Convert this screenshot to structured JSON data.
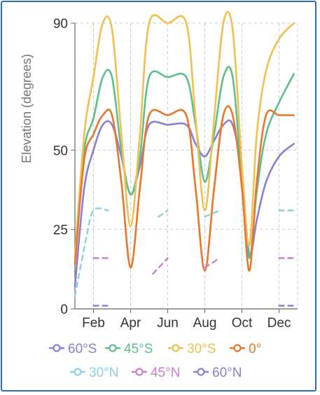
{
  "chart_data": {
    "type": "line",
    "ylabel": "Elevation (degrees)",
    "xlabel": "",
    "ylim": [
      0,
      90
    ],
    "xlim": [
      0,
      12
    ],
    "y_ticks": [
      0,
      25,
      50,
      90
    ],
    "x_ticks": [
      {
        "label": "Feb",
        "x": 1
      },
      {
        "label": "Apr",
        "x": 3
      },
      {
        "label": "Jun",
        "x": 5
      },
      {
        "label": "Aug",
        "x": 7
      },
      {
        "label": "Oct",
        "x": 9
      },
      {
        "label": "Dec",
        "x": 11
      }
    ],
    "grid": true,
    "legend_position": "bottom",
    "series": [
      {
        "name": "60°S",
        "color": "#8a7fd0",
        "dash": false,
        "points": [
          [
            0,
            7
          ],
          [
            0.5,
            38
          ],
          [
            1,
            50
          ],
          [
            1.5,
            58
          ],
          [
            2,
            58
          ],
          [
            2.5,
            48
          ],
          [
            3,
            36
          ],
          [
            3.5,
            45
          ],
          [
            4,
            58
          ],
          [
            5,
            58
          ],
          [
            6,
            58
          ],
          [
            6.5,
            52
          ],
          [
            7,
            48
          ],
          [
            7.5,
            53
          ],
          [
            8,
            58
          ],
          [
            8.5,
            58
          ],
          [
            9,
            42
          ],
          [
            9.4,
            17
          ],
          [
            9.8,
            28
          ],
          [
            10.3,
            40
          ],
          [
            11,
            48
          ],
          [
            11.8,
            52
          ]
        ]
      },
      {
        "name": "45°S",
        "color": "#5fbf8c",
        "dash": false,
        "points": [
          [
            0,
            16
          ],
          [
            0.5,
            50
          ],
          [
            1,
            60
          ],
          [
            1.5,
            73
          ],
          [
            2,
            73
          ],
          [
            2.5,
            50
          ],
          [
            3,
            36
          ],
          [
            3.5,
            48
          ],
          [
            4,
            73
          ],
          [
            5,
            73
          ],
          [
            6,
            73
          ],
          [
            6.5,
            58
          ],
          [
            7,
            40
          ],
          [
            7.5,
            55
          ],
          [
            8,
            73
          ],
          [
            8.5,
            73
          ],
          [
            9,
            40
          ],
          [
            9.4,
            16
          ],
          [
            9.8,
            37
          ],
          [
            10.3,
            55
          ],
          [
            11,
            65
          ],
          [
            11.8,
            74
          ]
        ]
      },
      {
        "name": "30°S",
        "color": "#f0c050",
        "dash": false,
        "points": [
          [
            0,
            16
          ],
          [
            0.5,
            55
          ],
          [
            1,
            73
          ],
          [
            1.5,
            90
          ],
          [
            2,
            88
          ],
          [
            2.5,
            55
          ],
          [
            3,
            26
          ],
          [
            3.5,
            55
          ],
          [
            4,
            90
          ],
          [
            5,
            90
          ],
          [
            6,
            90
          ],
          [
            6.5,
            60
          ],
          [
            7,
            31
          ],
          [
            7.5,
            60
          ],
          [
            8,
            90
          ],
          [
            8.5,
            88
          ],
          [
            9,
            45
          ],
          [
            9.4,
            20
          ],
          [
            9.8,
            55
          ],
          [
            10.3,
            75
          ],
          [
            11,
            85
          ],
          [
            11.8,
            90
          ]
        ]
      },
      {
        "name": "0°",
        "color": "#e8762c",
        "dash": false,
        "points": [
          [
            0,
            14
          ],
          [
            0.5,
            47
          ],
          [
            1,
            55
          ],
          [
            1.5,
            61
          ],
          [
            2,
            61
          ],
          [
            2.5,
            40
          ],
          [
            3,
            13
          ],
          [
            3.5,
            38
          ],
          [
            4,
            61
          ],
          [
            5,
            61
          ],
          [
            6,
            61
          ],
          [
            6.5,
            38
          ],
          [
            7,
            12
          ],
          [
            7.5,
            38
          ],
          [
            8,
            61
          ],
          [
            8.5,
            61
          ],
          [
            9,
            38
          ],
          [
            9.4,
            12
          ],
          [
            9.8,
            40
          ],
          [
            10.3,
            61
          ],
          [
            11,
            61
          ],
          [
            11.8,
            61
          ]
        ]
      },
      {
        "name": "30°N",
        "color": "#8fd0e0",
        "dash": true,
        "segments": [
          [
            [
              0,
              4
            ],
            [
              0.6,
              22
            ],
            [
              1,
              31
            ],
            [
              1.8,
              31
            ]
          ],
          [
            [
              4.5,
              29
            ],
            [
              5,
              31
            ]
          ],
          [
            [
              7,
              29
            ],
            [
              7.8,
              31
            ]
          ],
          [
            [
              11,
              31
            ],
            [
              11.8,
              31
            ]
          ]
        ]
      },
      {
        "name": "45°N",
        "color": "#c87fd0",
        "dash": true,
        "segments": [
          [
            [
              1,
              16
            ],
            [
              1.8,
              16
            ]
          ],
          [
            [
              4.2,
              11
            ],
            [
              5,
              16
            ]
          ],
          [
            [
              7,
              13
            ],
            [
              7.8,
              16
            ]
          ],
          [
            [
              11,
              16
            ],
            [
              11.8,
              16
            ]
          ]
        ]
      },
      {
        "name": "60°N",
        "color": "#8a7fd0",
        "dash": true,
        "segments": [
          [
            [
              1,
              1
            ],
            [
              1.8,
              1
            ]
          ],
          [
            [
              11,
              1
            ],
            [
              11.8,
              1
            ]
          ]
        ]
      }
    ]
  }
}
